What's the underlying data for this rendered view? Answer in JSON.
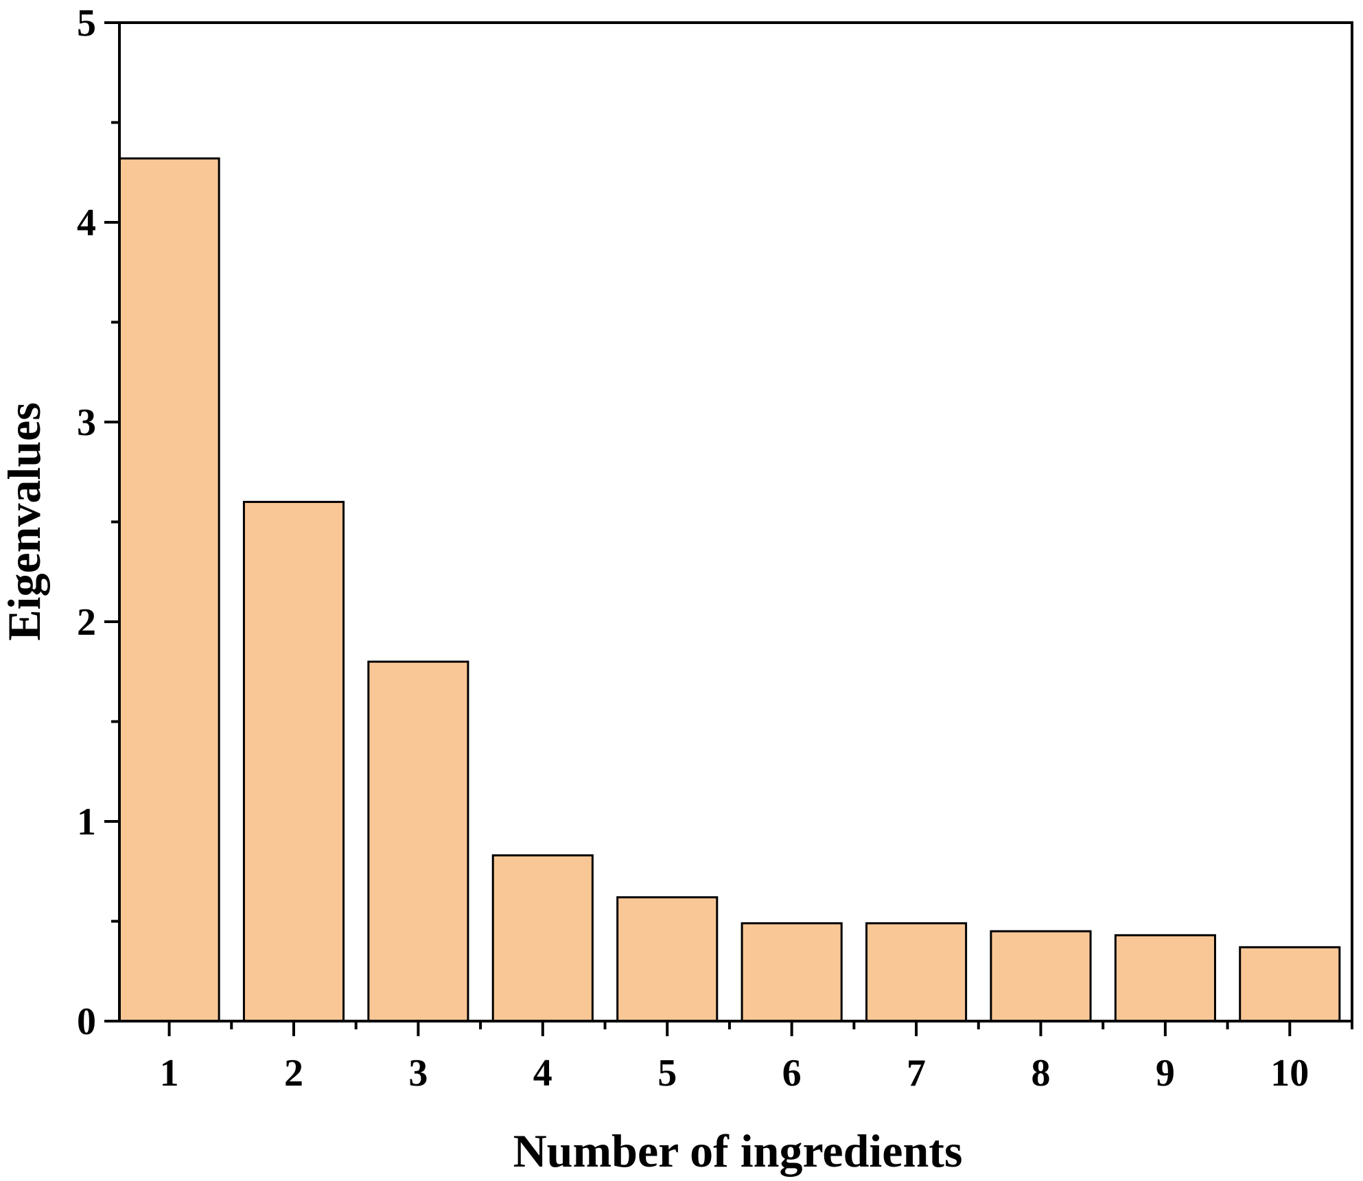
{
  "chart_data": {
    "type": "bar",
    "title": "",
    "xlabel": "Number of ingredients",
    "ylabel": "Eigenvalues",
    "categories": [
      "1",
      "2",
      "3",
      "4",
      "5",
      "6",
      "7",
      "8",
      "9",
      "10"
    ],
    "values": [
      4.32,
      2.6,
      1.8,
      0.83,
      0.62,
      0.49,
      0.49,
      0.45,
      0.43,
      0.37
    ],
    "ylim": [
      0,
      5
    ],
    "xlim": [
      0.6,
      10.5
    ],
    "yticks": [
      "0",
      "1",
      "2",
      "3",
      "4",
      "5"
    ],
    "grid": false,
    "legend": "none",
    "colors": {
      "bar_fill": "#f9c796",
      "bar_stroke": "#000000",
      "axis": "#000000"
    }
  }
}
